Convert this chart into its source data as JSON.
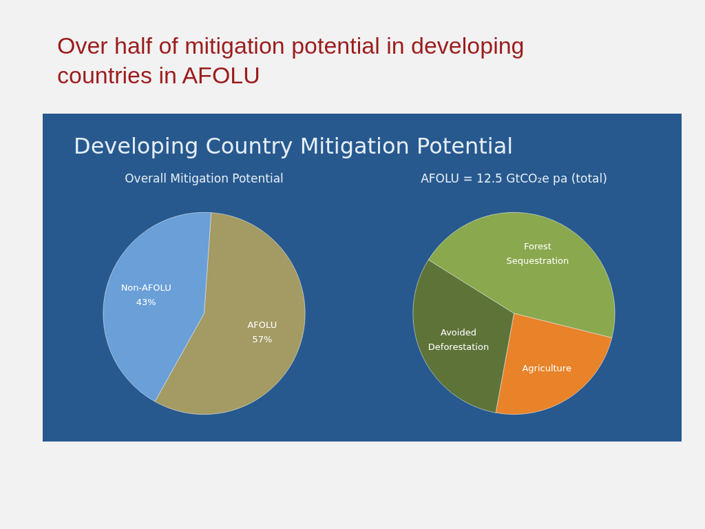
{
  "chart_data": [
    {
      "type": "pie",
      "title": "Overall Mitigation Potential",
      "annotations": [
        "Over half of mitigation potential in developing countries in AFOLU",
        "Developing Country Mitigation Potential"
      ],
      "categories": [
        "AFOLU",
        "Non-AFOLU"
      ],
      "values": [
        57,
        43
      ],
      "colors": [
        "#a39a64",
        "#6a9fd8"
      ],
      "value_labels": [
        "57%",
        "43%"
      ]
    },
    {
      "type": "pie",
      "title": "AFOLU = 12.5 GtCO₂e pa (total)",
      "categories": [
        "Forest Sequestration",
        "Agriculture",
        "Avoided Deforestation"
      ],
      "values": [
        45,
        24,
        31
      ],
      "colors": [
        "#8aa84e",
        "#e8832a",
        "#5e7338"
      ]
    }
  ]
}
